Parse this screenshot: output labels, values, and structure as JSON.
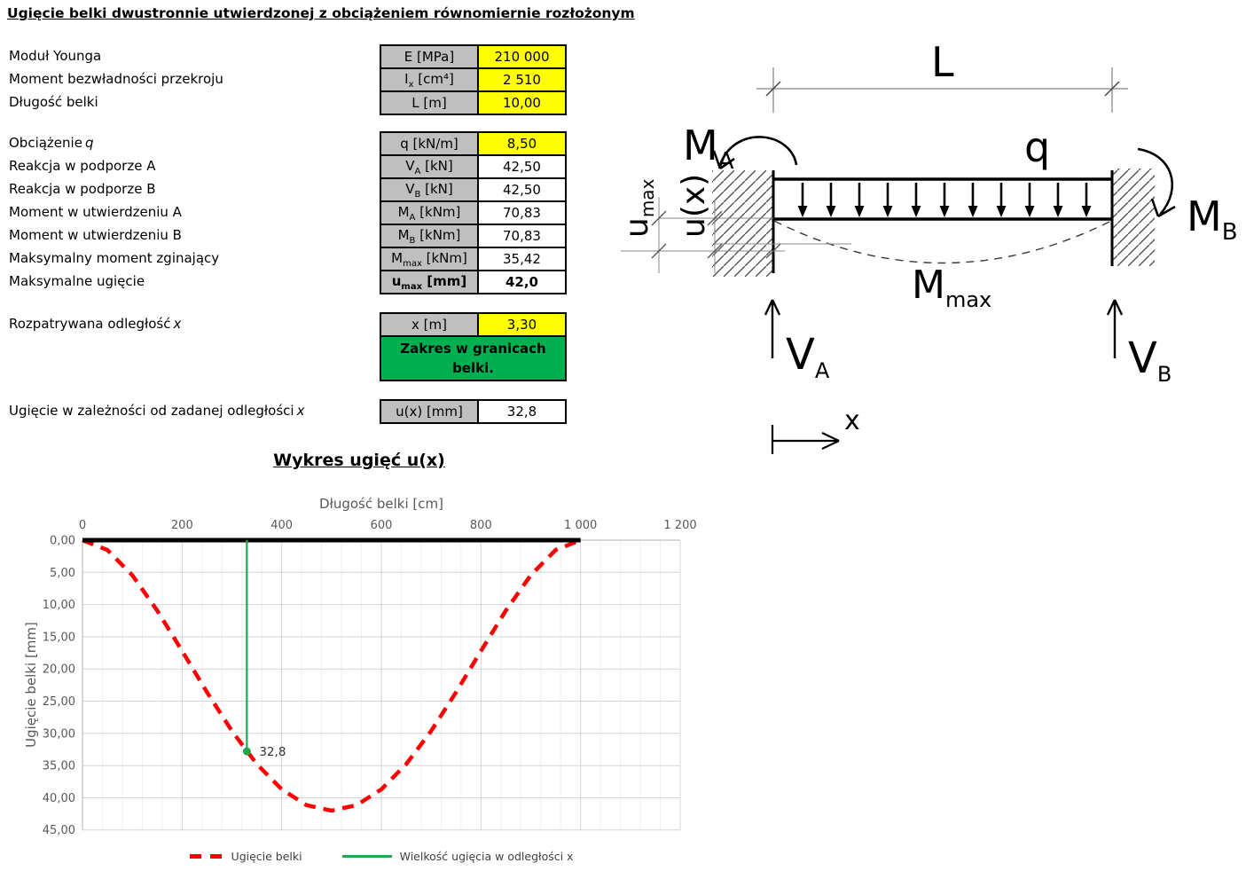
{
  "page_title": "Ugięcie belki dwustronnie utwierdzonej z obciążeniem równomiernie rozłożonym",
  "table": {
    "rows": [
      {
        "label": "Moduł Younga",
        "it": "",
        "p": "E",
        "sub": "",
        "unit": "[MPa]",
        "value": "210 000",
        "input": true,
        "bold": false
      },
      {
        "label": "Moment bezwładności przekroju",
        "it": "",
        "p": "I",
        "sub": "x",
        "unit": "[cm⁴]",
        "value": "2 510",
        "input": true,
        "bold": false
      },
      {
        "label": "Długość belki",
        "it": "",
        "p": "L",
        "sub": "",
        "unit": "[m]",
        "value": "10,00",
        "input": true,
        "bold": false
      },
      {
        "label": "Obciążenie",
        "it": "q",
        "p": "q",
        "sub": "",
        "unit": "[kN/m]",
        "value": "8,50",
        "input": true,
        "bold": false
      },
      {
        "label": "Reakcja w podporze A",
        "it": "",
        "p": "V",
        "sub": "A",
        "unit": "[kN]",
        "value": "42,50",
        "input": false,
        "bold": false
      },
      {
        "label": "Reakcja w podporze B",
        "it": "",
        "p": "V",
        "sub": "B",
        "unit": "[kN]",
        "value": "42,50",
        "input": false,
        "bold": false
      },
      {
        "label": "Moment w utwierdzeniu A",
        "it": "",
        "p": "M",
        "sub": "A",
        "unit": "[kNm]",
        "value": "70,83",
        "input": false,
        "bold": false
      },
      {
        "label": "Moment w utwierdzeniu B",
        "it": "",
        "p": "M",
        "sub": "B",
        "unit": "[kNm]",
        "value": "70,83",
        "input": false,
        "bold": false
      },
      {
        "label": "Maksymalny moment zginający",
        "it": "",
        "p": "M",
        "sub": "max",
        "unit": "[kNm]",
        "value": "35,42",
        "input": false,
        "bold": false
      },
      {
        "label": "Maksymalne ugięcie",
        "it": "",
        "p": "u",
        "sub": "max",
        "unit": "[mm]",
        "value": "42,0",
        "input": false,
        "bold": true
      },
      {
        "label": "Rozpatrywana odległość",
        "it": "x",
        "p": "x",
        "sub": "",
        "unit": "[m]",
        "value": "3,30",
        "input": true,
        "bold": false
      },
      {
        "label": "Ugięcie w zależności od zadanej odległości",
        "it": "x",
        "p": "u(x)",
        "sub": "",
        "unit": "[mm]",
        "value": "32,8",
        "input": false,
        "bold": false
      }
    ],
    "note": {
      "text": "Zakres w granicach belki."
    }
  },
  "diagram": {
    "labels": {
      "L": "L",
      "q": "q",
      "x": "x",
      "ux": "u(x)",
      "MA": {
        "base": "M",
        "sub": "A"
      },
      "MB": {
        "base": "M",
        "sub": "B"
      },
      "Mmax": {
        "base": "M",
        "sub": "max"
      },
      "VA": {
        "base": "V",
        "sub": "A"
      },
      "VB": {
        "base": "V",
        "sub": "B"
      },
      "umax": {
        "base": "u",
        "sub": "max"
      }
    }
  },
  "chart_data": {
    "type": "line",
    "title": "Wykres ugięć u(x)",
    "xlabel": "Długość belki [cm]",
    "ylabel": "Ugięcie belki [mm]",
    "xlim": [
      0,
      1200
    ],
    "ylim": [
      0,
      45
    ],
    "x_major": 200,
    "x_minor": 40,
    "y_major": 5,
    "x_tick_labels": [
      "0",
      "200",
      "400",
      "600",
      "800",
      "1 000",
      "1 200"
    ],
    "y_tick_labels": [
      "0,00",
      "5,00",
      "10,00",
      "15,00",
      "20,00",
      "25,00",
      "30,00",
      "35,00",
      "40,00",
      "45,00"
    ],
    "series": [
      {
        "name": "Ugięcie belki",
        "style": "dashed",
        "color": "#FF0000",
        "x": [
          0,
          50,
          100,
          150,
          200,
          250,
          300,
          350,
          400,
          450,
          500,
          550,
          600,
          650,
          700,
          750,
          800,
          850,
          900,
          950,
          1000
        ],
        "y": [
          0,
          1.52,
          5.44,
          10.92,
          17.2,
          23.62,
          29.63,
          34.78,
          38.7,
          41.16,
          42.0,
          41.16,
          38.7,
          34.78,
          29.63,
          23.62,
          17.2,
          10.92,
          5.44,
          1.52,
          0
        ]
      },
      {
        "name": "Wielkość ugięcia w odległości x",
        "style": "solid",
        "color": "#22A74A",
        "x": [
          330,
          330
        ],
        "y": [
          0,
          32.8
        ]
      },
      {
        "name": "Belka",
        "style": "solid",
        "color": "#000000",
        "x": [
          0,
          1000
        ],
        "y": [
          0,
          0
        ]
      }
    ],
    "point_label": {
      "x": 330,
      "y": 32.8,
      "text": "32,8"
    }
  },
  "legend": {
    "items": [
      {
        "label": "Ugięcie belki",
        "color": "#FF0000",
        "style": "dashed"
      },
      {
        "label": "Wielkość ugięcia w odległości x",
        "color": "#22A74A",
        "style": "solid"
      }
    ]
  },
  "colors": {
    "input_bg": "#FFFF00",
    "param_bg": "#BFBFBF",
    "note_bg": "#00B050",
    "curve_red": "#FF0000",
    "marker_green": "#22A74A"
  }
}
